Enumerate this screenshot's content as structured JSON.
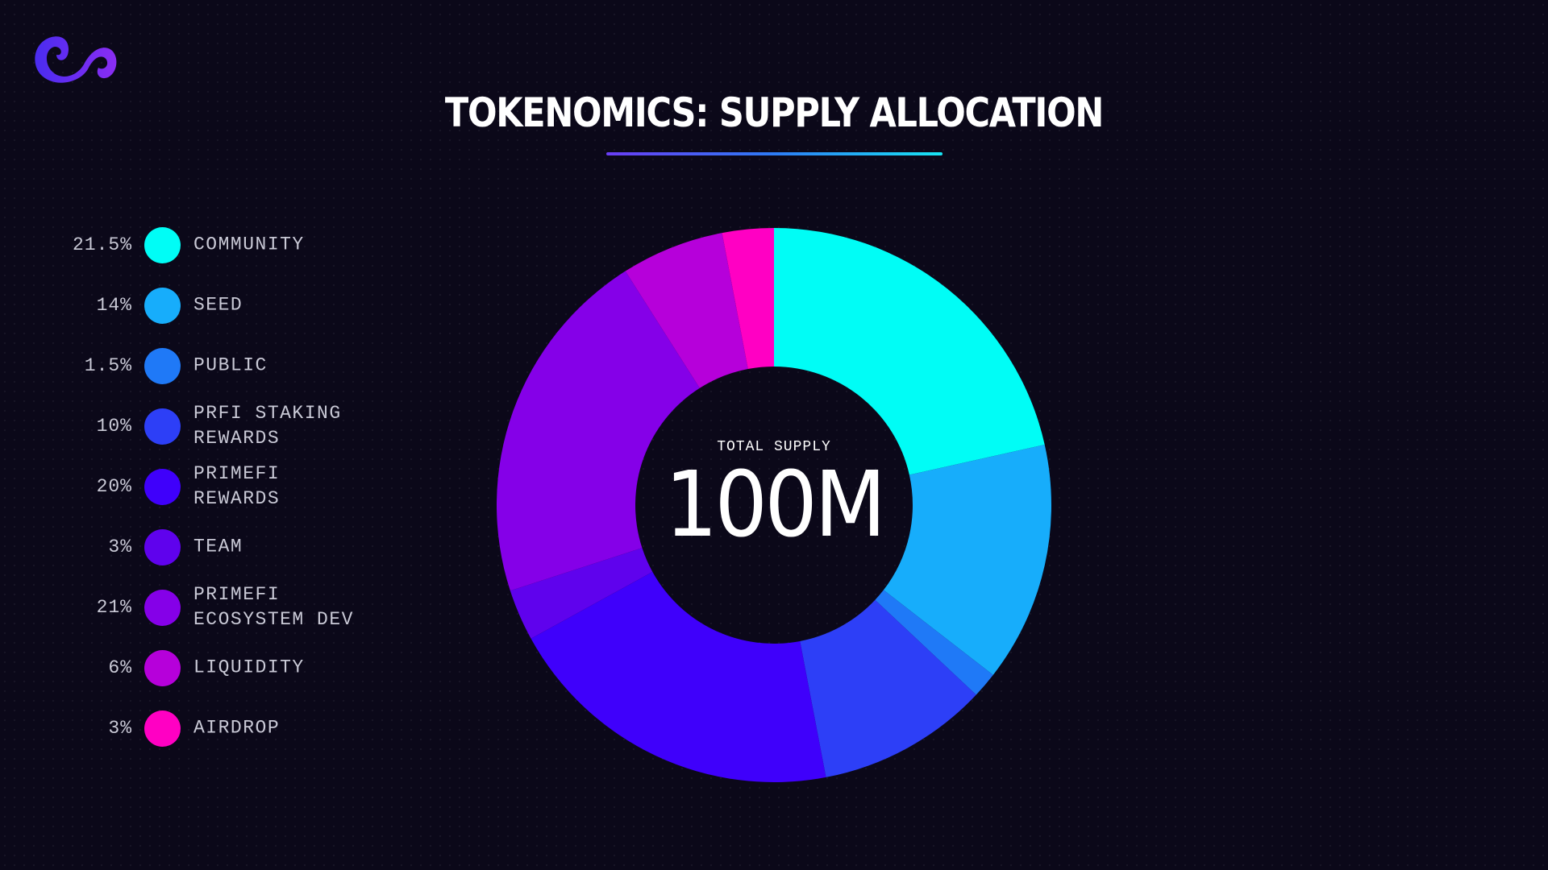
{
  "logo": {
    "icon": "brand-swirl-logo",
    "color_start": "#4a2cf0",
    "color_end": "#8a2df2"
  },
  "header": {
    "title": "TOKENOMICS: SUPPLY ALLOCATION"
  },
  "chart_data": {
    "type": "pie",
    "donut": true,
    "title": "TOKENOMICS: SUPPLY ALLOCATION",
    "center_caption": "TOTAL SUPPLY",
    "center_value": "100M",
    "legend_position": "left",
    "slices": [
      {
        "label": "COMMUNITY",
        "pct_label": "21.5%",
        "value": 21.5,
        "color": "#00fdf6"
      },
      {
        "label": "SEED",
        "pct_label": "14%",
        "value": 14,
        "color": "#17adfb"
      },
      {
        "label": "PUBLIC",
        "pct_label": "1.5%",
        "value": 1.5,
        "color": "#1f79f7"
      },
      {
        "label": "PRFI STAKING REWARDS",
        "lines": [
          "PRFI STAKING",
          "REWARDS"
        ],
        "pct_label": "10%",
        "value": 10,
        "color": "#2d3ff7"
      },
      {
        "label": "PRIMEFI REWARDS",
        "lines": [
          "PRIMEFI",
          "REWARDS"
        ],
        "pct_label": "20%",
        "value": 20,
        "color": "#3f00fb"
      },
      {
        "label": "TEAM",
        "pct_label": "3%",
        "value": 3,
        "color": "#5f02ed"
      },
      {
        "label": "PRIMEFI ECOSYSTEM DEV",
        "lines": [
          "PRIMEFI",
          "ECOSYSTEM DEV"
        ],
        "pct_label": "21%",
        "value": 21,
        "color": "#8500e8"
      },
      {
        "label": "LIQUIDITY",
        "pct_label": "6%",
        "value": 6,
        "color": "#b600da"
      },
      {
        "label": "AIRDROP",
        "pct_label": "3%",
        "value": 3,
        "color": "#ff00c3"
      }
    ]
  }
}
